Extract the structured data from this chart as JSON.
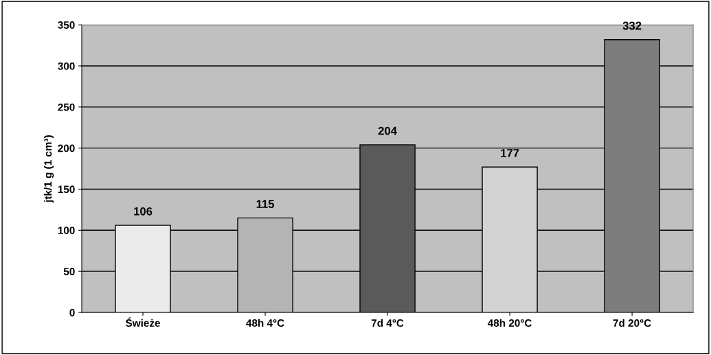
{
  "chart_data": {
    "type": "bar",
    "ylabel": "jtk/1 g (1 cm³)",
    "categories": [
      "Świeże",
      "48h 4°C",
      "7d 4°C",
      "48h 20°C",
      "7d 20°C"
    ],
    "values": [
      106,
      115,
      204,
      177,
      332
    ],
    "colors": [
      "#ebebeb",
      "#b4b4b4",
      "#5a5a5a",
      "#d2d2d2",
      "#7d7d7d"
    ],
    "ylim": [
      0,
      350
    ],
    "yticks": [
      0,
      50,
      100,
      150,
      200,
      250,
      300,
      350
    ],
    "grid": "y",
    "data_labels": true
  }
}
